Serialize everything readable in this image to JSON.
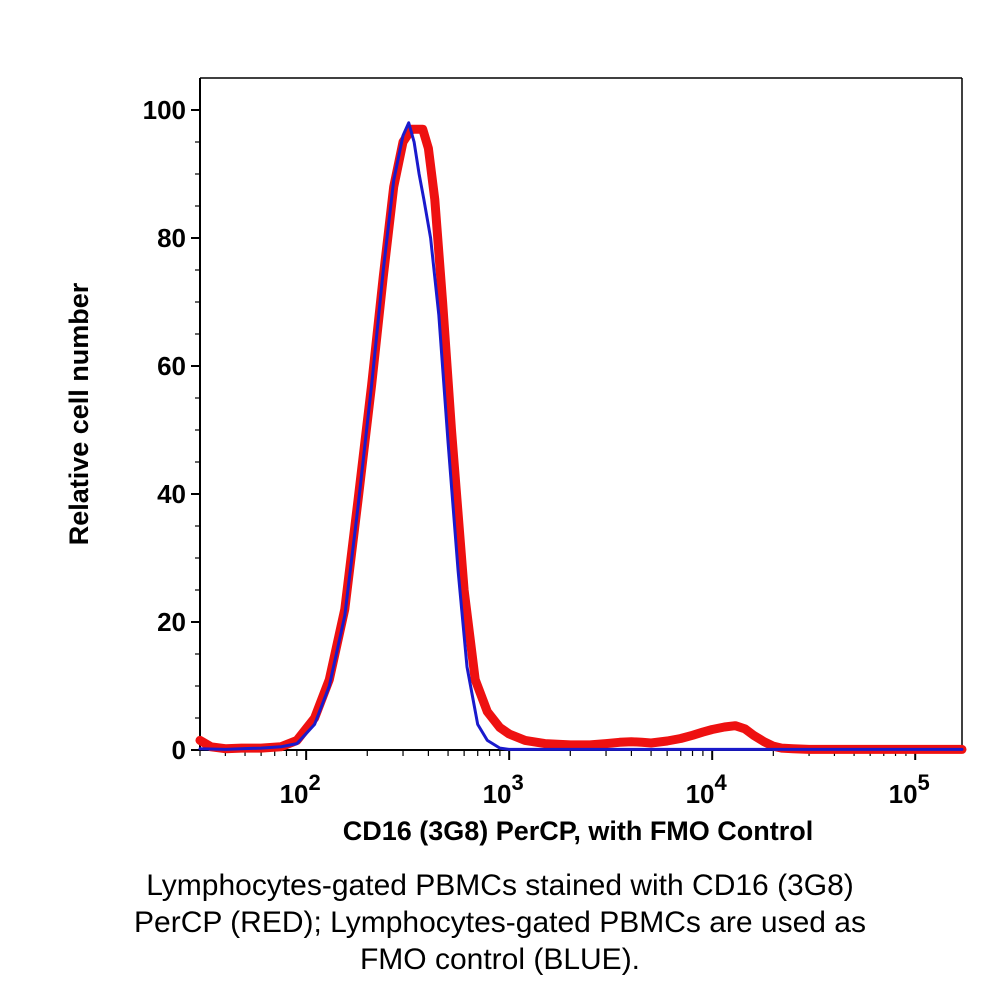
{
  "chart_data": {
    "type": "line",
    "xlabel": "CD16 (3G8) PerCP, with FMO Control",
    "ylabel": "Relative cell number",
    "x_scale": "log",
    "xlim": [
      30,
      170000
    ],
    "ylim": [
      0,
      100
    ],
    "grid": false,
    "y_ticks": [
      {
        "value": 0,
        "label": "0"
      },
      {
        "value": 20,
        "label": "20"
      },
      {
        "value": 40,
        "label": "40"
      },
      {
        "value": 60,
        "label": "60"
      },
      {
        "value": 80,
        "label": "80"
      },
      {
        "value": 100,
        "label": "100"
      }
    ],
    "x_ticks": [
      {
        "value": 100,
        "base": "10",
        "exp": "2"
      },
      {
        "value": 1000,
        "base": "10",
        "exp": "3"
      },
      {
        "value": 10000,
        "base": "10",
        "exp": "4"
      },
      {
        "value": 100000,
        "base": "10",
        "exp": "5"
      }
    ],
    "series": [
      {
        "color": "#ee1111",
        "x": [
          30,
          34,
          40,
          48,
          60,
          75,
          90,
          110,
          130,
          155,
          180,
          210,
          240,
          270,
          300,
          330,
          350,
          375,
          400,
          430,
          470,
          520,
          600,
          680,
          780,
          900,
          1000,
          1200,
          1500,
          2000,
          2500,
          3000,
          3500,
          4000,
          4500,
          5000,
          6000,
          7000,
          8000,
          9000,
          10000,
          11500,
          13000,
          14500,
          16000,
          18000,
          20000,
          22000,
          25000,
          30000,
          40000,
          60000,
          100000,
          170000
        ],
        "values": [
          1.5,
          0.5,
          0.2,
          0.3,
          0.3,
          0.5,
          1.5,
          5,
          11,
          22,
          39,
          57,
          74,
          88,
          95,
          97,
          97,
          97,
          94,
          86,
          70,
          50,
          25,
          11,
          6,
          3.5,
          2.5,
          1.5,
          1,
          0.8,
          0.8,
          1,
          1.2,
          1.3,
          1.2,
          1.1,
          1.4,
          1.8,
          2.3,
          2.8,
          3.2,
          3.6,
          3.8,
          3.3,
          2.3,
          1.3,
          0.6,
          0.3,
          0.2,
          0.1,
          0.1,
          0.1,
          0.1,
          0.1
        ]
      },
      {
        "color": "#1a1acc",
        "x": [
          30,
          40,
          48,
          60,
          75,
          90,
          110,
          130,
          155,
          180,
          210,
          240,
          270,
          300,
          320,
          340,
          360,
          380,
          410,
          450,
          500,
          560,
          620,
          700,
          780,
          900,
          1000,
          2000,
          10000,
          170000
        ],
        "values": [
          0.2,
          0.1,
          0.2,
          0.3,
          0.5,
          1,
          4,
          10,
          21,
          38,
          57,
          75,
          89,
          96,
          98,
          95,
          90,
          86,
          80,
          68,
          48,
          28,
          13,
          4,
          1.5,
          0.3,
          0.1,
          0.1,
          0.1,
          0.1
        ]
      }
    ]
  },
  "caption": {
    "line1": "Lymphocytes-gated PBMCs stained with CD16 (3G8)",
    "line2": "PerCP (RED); Lymphocytes-gated PBMCs are used as",
    "line3": "FMO control (BLUE)."
  }
}
